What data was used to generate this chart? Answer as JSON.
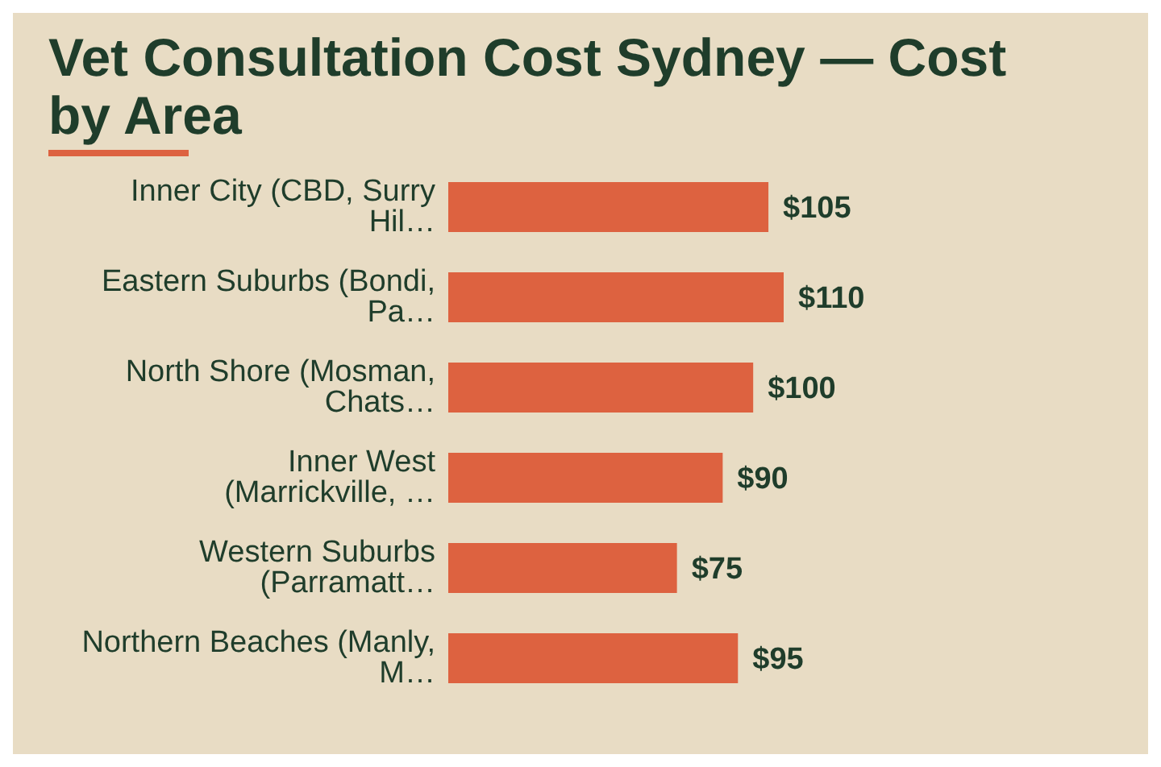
{
  "chart_data": {
    "type": "bar",
    "orientation": "horizontal",
    "title": "Vet Consultation Cost Sydney — Cost by Area",
    "categories": [
      "Inner City (CBD, Surry Hil…",
      "Eastern Suburbs (Bondi, Pa…",
      "North Shore (Mosman, Chats…",
      "Inner West (Marrickville, …",
      "Western Suburbs (Parramatt…",
      "Northern Beaches (Manly, M…"
    ],
    "values": [
      105,
      110,
      100,
      90,
      75,
      95
    ],
    "value_labels": [
      "$105",
      "$110",
      "$100",
      "$90",
      "$75",
      "$95"
    ],
    "color": "#dd6240",
    "grid": false,
    "legend": false
  }
}
